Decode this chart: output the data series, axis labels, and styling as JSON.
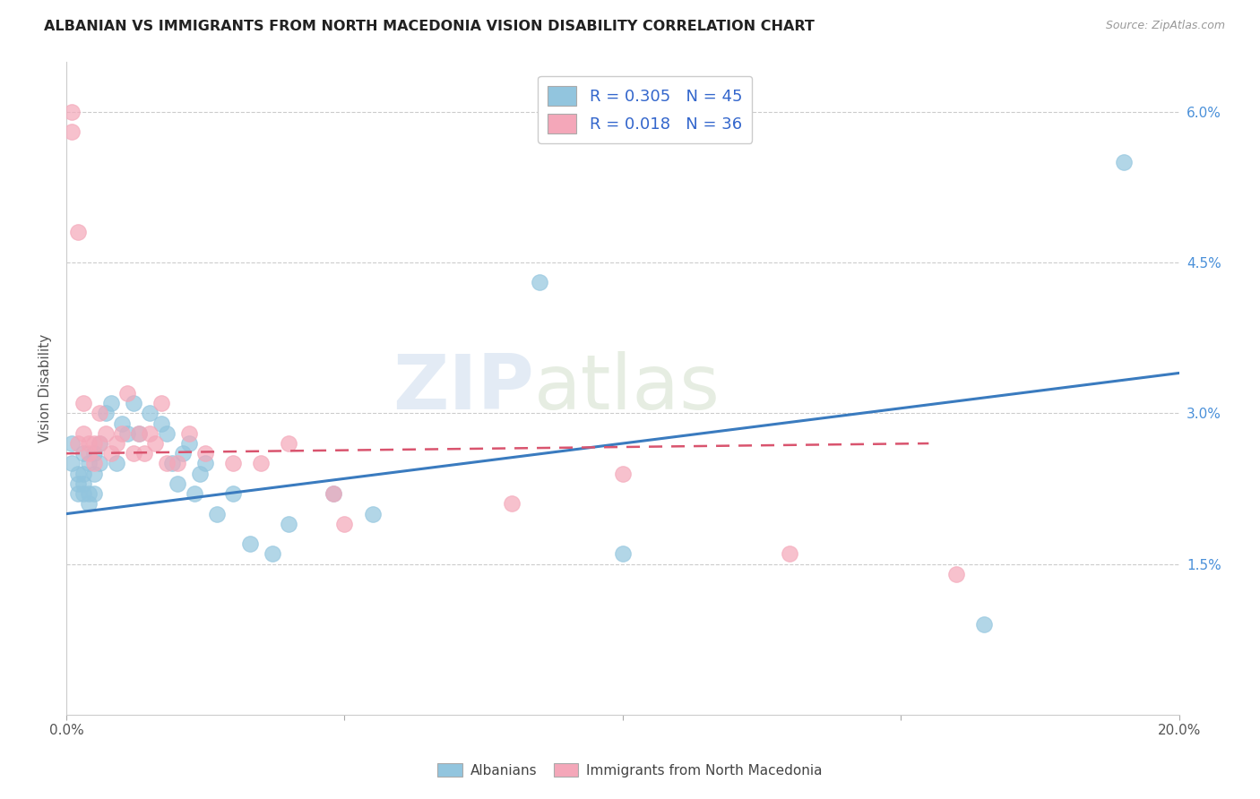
{
  "title": "ALBANIAN VS IMMIGRANTS FROM NORTH MACEDONIA VISION DISABILITY CORRELATION CHART",
  "source": "Source: ZipAtlas.com",
  "ylabel": "Vision Disability",
  "xlim": [
    0.0,
    0.2
  ],
  "ylim": [
    0.0,
    0.065
  ],
  "xtick_positions": [
    0.0,
    0.05,
    0.1,
    0.15,
    0.2
  ],
  "xtick_labels": [
    "0.0%",
    "",
    "",
    "",
    "20.0%"
  ],
  "ytick_positions": [
    0.015,
    0.03,
    0.045,
    0.06
  ],
  "ytick_labels": [
    "1.5%",
    "3.0%",
    "4.5%",
    "6.0%"
  ],
  "legend_R_blue": "0.305",
  "legend_N_blue": "45",
  "legend_R_pink": "0.018",
  "legend_N_pink": "36",
  "blue_color": "#92c5de",
  "pink_color": "#f4a7b9",
  "line_blue": "#3a7bbf",
  "line_pink": "#d9546e",
  "watermark_zip": "ZIP",
  "watermark_atlas": "atlas",
  "albanians_x": [
    0.001,
    0.001,
    0.002,
    0.002,
    0.002,
    0.003,
    0.003,
    0.003,
    0.003,
    0.004,
    0.004,
    0.004,
    0.005,
    0.005,
    0.005,
    0.006,
    0.006,
    0.007,
    0.008,
    0.009,
    0.01,
    0.011,
    0.012,
    0.013,
    0.015,
    0.017,
    0.018,
    0.019,
    0.02,
    0.021,
    0.022,
    0.023,
    0.024,
    0.025,
    0.027,
    0.03,
    0.033,
    0.037,
    0.04,
    0.048,
    0.055,
    0.085,
    0.1,
    0.165,
    0.19
  ],
  "albanians_y": [
    0.027,
    0.025,
    0.024,
    0.022,
    0.023,
    0.026,
    0.024,
    0.022,
    0.023,
    0.025,
    0.022,
    0.021,
    0.026,
    0.024,
    0.022,
    0.027,
    0.025,
    0.03,
    0.031,
    0.025,
    0.029,
    0.028,
    0.031,
    0.028,
    0.03,
    0.029,
    0.028,
    0.025,
    0.023,
    0.026,
    0.027,
    0.022,
    0.024,
    0.025,
    0.02,
    0.022,
    0.017,
    0.016,
    0.019,
    0.022,
    0.02,
    0.043,
    0.016,
    0.009,
    0.055
  ],
  "macedonia_x": [
    0.001,
    0.001,
    0.002,
    0.002,
    0.003,
    0.003,
    0.004,
    0.004,
    0.005,
    0.005,
    0.006,
    0.006,
    0.007,
    0.008,
    0.009,
    0.01,
    0.011,
    0.012,
    0.013,
    0.014,
    0.015,
    0.016,
    0.017,
    0.018,
    0.02,
    0.022,
    0.025,
    0.03,
    0.035,
    0.04,
    0.048,
    0.05,
    0.08,
    0.1,
    0.13,
    0.16
  ],
  "macedonia_y": [
    0.06,
    0.058,
    0.048,
    0.027,
    0.028,
    0.031,
    0.027,
    0.026,
    0.027,
    0.025,
    0.03,
    0.027,
    0.028,
    0.026,
    0.027,
    0.028,
    0.032,
    0.026,
    0.028,
    0.026,
    0.028,
    0.027,
    0.031,
    0.025,
    0.025,
    0.028,
    0.026,
    0.025,
    0.025,
    0.027,
    0.022,
    0.019,
    0.021,
    0.024,
    0.016,
    0.014
  ],
  "blue_line_x": [
    0.0,
    0.2
  ],
  "blue_line_y": [
    0.02,
    0.034
  ],
  "pink_line_x": [
    0.0,
    0.155
  ],
  "pink_line_y": [
    0.026,
    0.027
  ]
}
